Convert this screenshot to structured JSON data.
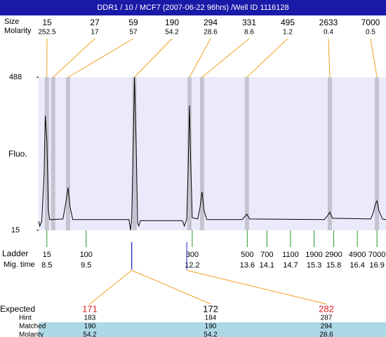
{
  "chart_data": {
    "type": "electropherogram",
    "title": "DDR1 / 10 / MCF7 (2007-06-22 96hrs) /Well ID 1116128",
    "y_label": "Fluo.",
    "ylim": [
      15,
      488
    ],
    "yticks": [
      15,
      488
    ],
    "xlim": [
      8.29,
      17.13
    ],
    "peaks_size_label": "Size",
    "peaks_molarity_label": "Molarity",
    "peaks": {
      "sizes": [
        15,
        27,
        59,
        190,
        294,
        331,
        495,
        2633,
        7000
      ],
      "molarity": [
        252.5,
        17,
        57,
        54.2,
        28.6,
        8.6,
        1.2,
        0.4,
        0.5
      ],
      "times": [
        8.5,
        8.66,
        9.04,
        10.73,
        12.13,
        12.45,
        13.59,
        15.7,
        16.9
      ]
    },
    "ladder_label": "Ladder",
    "mig_time_label": "Mig. time",
    "ladder": {
      "sizes": [
        15,
        100,
        300,
        500,
        700,
        1100,
        1900,
        2900,
        4900,
        7000
      ],
      "times": [
        8.5,
        9.5,
        12.2,
        13.6,
        14.1,
        14.7,
        15.3,
        15.8,
        16.4,
        16.9
      ]
    },
    "trace": {
      "color": "#000000",
      "time": [
        8.29,
        8.32,
        8.37,
        8.43,
        8.46,
        8.5,
        8.54,
        8.57,
        8.63,
        8.91,
        8.98,
        9.04,
        9.09,
        9.16,
        10.52,
        10.59,
        10.63,
        10.66,
        10.7,
        10.73,
        10.77,
        10.81,
        10.84,
        10.88,
        11.95,
        12.0,
        12.06,
        12.09,
        12.13,
        12.16,
        12.2,
        12.34,
        12.4,
        12.45,
        12.5,
        12.57,
        13.47,
        13.54,
        13.59,
        13.66,
        15.56,
        15.65,
        15.7,
        15.77,
        16.74,
        16.81,
        16.86,
        16.9,
        16.95,
        17.04,
        17.13
      ],
      "fluo": [
        43,
        28,
        43,
        184,
        369,
        293,
        76,
        48,
        48,
        50,
        97,
        147,
        87,
        48,
        48,
        48,
        15,
        50,
        293,
        488,
        293,
        37,
        28,
        45,
        45,
        28,
        50,
        184,
        401,
        228,
        54,
        50,
        87,
        134,
        76,
        48,
        48,
        58,
        65,
        50,
        48,
        61,
        71,
        52,
        50,
        71,
        97,
        106,
        76,
        50,
        48
      ]
    },
    "table": {
      "row_labels": [
        "Expected",
        "Hint",
        "Matched",
        "Molarity"
      ],
      "columns": [
        {
          "expected": 171,
          "hint": 183,
          "matched": 190,
          "molarity": 54.2,
          "time": 10.66,
          "color": "#e02020"
        },
        {
          "expected": 172,
          "hint": 184,
          "matched": 190,
          "molarity": 54.2,
          "time": 10.66,
          "color": "#000000"
        },
        {
          "expected": 282,
          "hint": 287,
          "matched": 294,
          "molarity": 28.6,
          "time": 12.06,
          "color": "#e02020"
        }
      ]
    }
  }
}
